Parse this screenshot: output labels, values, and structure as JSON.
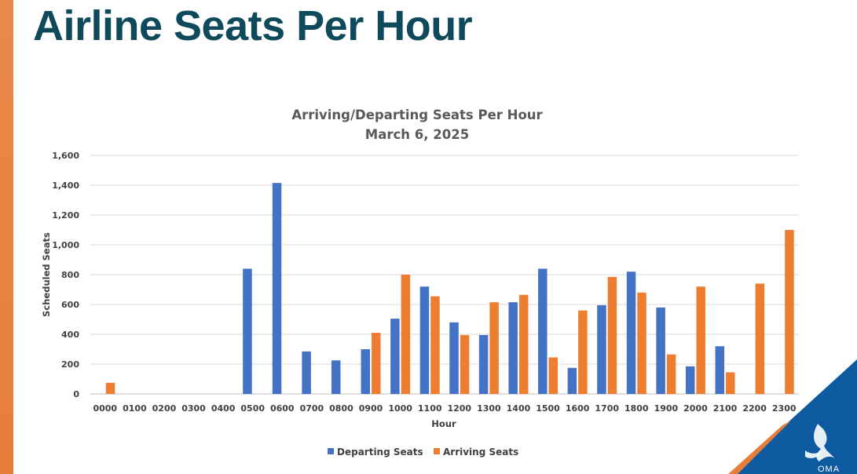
{
  "slide": {
    "title": "Airline Seats Per Hour",
    "logo_text": "OMA"
  },
  "colors": {
    "departing": "#4472c4",
    "arriving": "#ed7d31",
    "title": "#0f4a5c",
    "accent": "#e67e3a",
    "corner_blue": "#0d5aa0"
  },
  "chart_data": {
    "type": "bar",
    "title": "Arriving/Departing Seats Per Hour",
    "subtitle": "March 6, 2025",
    "xlabel": "Hour",
    "ylabel": "Scheduled Seats",
    "ylim": [
      0,
      1600
    ],
    "yticks": [
      0,
      200,
      400,
      600,
      800,
      1000,
      1200,
      1400,
      1600
    ],
    "ytick_labels": [
      "0",
      "200",
      "400",
      "600",
      "800",
      "1,000",
      "1,200",
      "1,400",
      "1,600"
    ],
    "grid": true,
    "legend_position": "bottom",
    "categories": [
      "0000",
      "0100",
      "0200",
      "0300",
      "0400",
      "0500",
      "0600",
      "0700",
      "0800",
      "0900",
      "1000",
      "1100",
      "1200",
      "1300",
      "1400",
      "1500",
      "1600",
      "1700",
      "1800",
      "1900",
      "2000",
      "2100",
      "2200",
      "2300"
    ],
    "series": [
      {
        "name": "Departing Seats",
        "color": "#4472c4",
        "values": [
          0,
          0,
          0,
          0,
          0,
          840,
          1415,
          285,
          225,
          300,
          505,
          720,
          480,
          395,
          615,
          840,
          175,
          595,
          820,
          580,
          185,
          320,
          0,
          0
        ]
      },
      {
        "name": "Arriving Seats",
        "color": "#ed7d31",
        "values": [
          75,
          0,
          0,
          0,
          0,
          0,
          0,
          0,
          0,
          410,
          800,
          655,
          395,
          615,
          665,
          245,
          560,
          785,
          680,
          265,
          720,
          145,
          740,
          1100
        ]
      }
    ]
  }
}
